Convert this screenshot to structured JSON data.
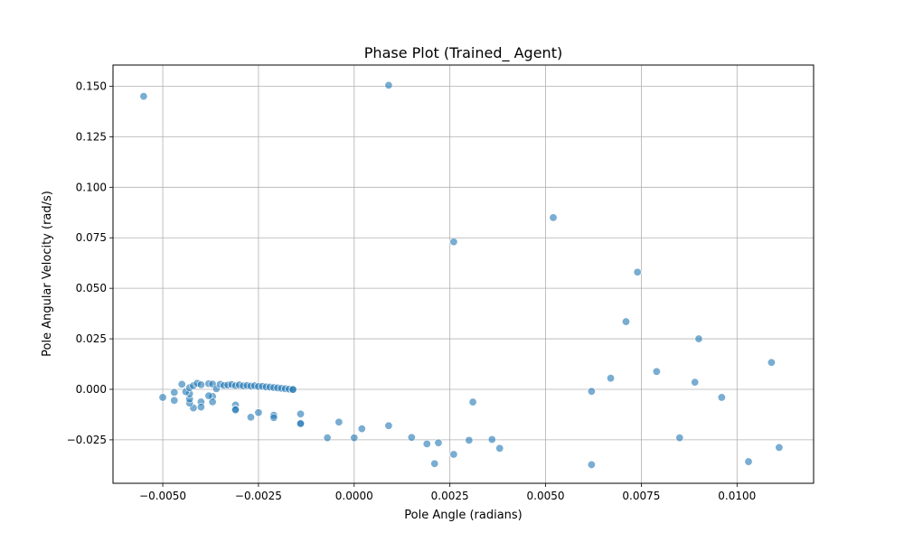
{
  "chart_data": {
    "type": "scatter",
    "title": "Phase Plot (Trained_ Agent)",
    "xlabel": "Pole Angle (radians)",
    "ylabel": "Pole Angular Velocity (rad/s)",
    "xlim": [
      -0.0063,
      0.012
    ],
    "ylim": [
      -0.0465,
      0.1605
    ],
    "grid": true,
    "x_ticks": [
      -0.005,
      -0.0025,
      0.0,
      0.0025,
      0.005,
      0.0075,
      0.01
    ],
    "x_tick_labels": [
      "−0.0050",
      "−0.0025",
      "0.0000",
      "0.0025",
      "0.0050",
      "0.0075",
      "0.0100"
    ],
    "y_ticks": [
      -0.025,
      0.0,
      0.025,
      0.05,
      0.075,
      0.1,
      0.125,
      0.15
    ],
    "y_tick_labels": [
      "−0.025",
      "0.000",
      "0.025",
      "0.050",
      "0.075",
      "0.100",
      "0.125",
      "0.150"
    ],
    "marker_color": "#1f77b4",
    "points": [
      {
        "x": -0.0055,
        "y": 0.145
      },
      {
        "x": 0.0009,
        "y": 0.1505
      },
      {
        "x": 0.0052,
        "y": 0.085
      },
      {
        "x": 0.0026,
        "y": 0.073
      },
      {
        "x": 0.0074,
        "y": 0.058
      },
      {
        "x": 0.0071,
        "y": 0.0335
      },
      {
        "x": 0.009,
        "y": 0.025
      },
      {
        "x": 0.0109,
        "y": 0.0133
      },
      {
        "x": 0.0079,
        "y": 0.0088
      },
      {
        "x": 0.0067,
        "y": 0.0055
      },
      {
        "x": 0.0089,
        "y": 0.0035
      },
      {
        "x": 0.0062,
        "y": -0.001
      },
      {
        "x": 0.0096,
        "y": -0.004
      },
      {
        "x": 0.0031,
        "y": -0.0063
      },
      {
        "x": 0.0085,
        "y": -0.024
      },
      {
        "x": 0.0111,
        "y": -0.0288
      },
      {
        "x": 0.0103,
        "y": -0.0358
      },
      {
        "x": 0.0062,
        "y": -0.0373
      },
      {
        "x": 0.0038,
        "y": -0.0292
      },
      {
        "x": 0.0036,
        "y": -0.0248
      },
      {
        "x": 0.003,
        "y": -0.0252
      },
      {
        "x": 0.0026,
        "y": -0.0322
      },
      {
        "x": 0.0022,
        "y": -0.0265
      },
      {
        "x": 0.0021,
        "y": -0.0368
      },
      {
        "x": 0.0019,
        "y": -0.027
      },
      {
        "x": 0.0015,
        "y": -0.0238
      },
      {
        "x": 0.0009,
        "y": -0.018
      },
      {
        "x": 0.0002,
        "y": -0.0195
      },
      {
        "x": 0.0,
        "y": -0.024
      },
      {
        "x": -0.0004,
        "y": -0.0162
      },
      {
        "x": -0.0007,
        "y": -0.024
      },
      {
        "x": -0.0014,
        "y": -0.0122
      },
      {
        "x": -0.0014,
        "y": -0.0168
      },
      {
        "x": -0.0014,
        "y": -0.017
      },
      {
        "x": -0.0021,
        "y": -0.0128
      },
      {
        "x": -0.0021,
        "y": -0.014
      },
      {
        "x": -0.0025,
        "y": -0.0115
      },
      {
        "x": -0.0027,
        "y": -0.0138
      },
      {
        "x": -0.0031,
        "y": -0.0078
      },
      {
        "x": -0.0031,
        "y": -0.0098
      },
      {
        "x": -0.0031,
        "y": -0.0102
      },
      {
        "x": -0.0037,
        "y": -0.0035
      },
      {
        "x": -0.0037,
        "y": -0.0062
      },
      {
        "x": -0.0038,
        "y": -0.0032
      },
      {
        "x": -0.004,
        "y": -0.0062
      },
      {
        "x": -0.004,
        "y": -0.0088
      },
      {
        "x": -0.0042,
        "y": -0.0092
      },
      {
        "x": -0.0043,
        "y": -0.0068
      },
      {
        "x": -0.0043,
        "y": -0.0048
      },
      {
        "x": -0.0043,
        "y": -0.0022
      },
      {
        "x": -0.0047,
        "y": -0.0055
      },
      {
        "x": -0.0047,
        "y": -0.0015
      },
      {
        "x": -0.005,
        "y": -0.004
      },
      {
        "x": -0.0045,
        "y": 0.0025
      },
      {
        "x": -0.0044,
        "y": -0.0012
      },
      {
        "x": -0.0043,
        "y": 0.0008
      },
      {
        "x": -0.0042,
        "y": 0.0018
      },
      {
        "x": -0.0041,
        "y": 0.003
      },
      {
        "x": -0.004,
        "y": 0.0023
      },
      {
        "x": -0.0038,
        "y": 0.0028
      },
      {
        "x": -0.0037,
        "y": 0.0026
      },
      {
        "x": -0.0036,
        "y": 0.0003
      },
      {
        "x": -0.0035,
        "y": 0.0025
      },
      {
        "x": -0.0034,
        "y": 0.0019
      },
      {
        "x": -0.0033,
        "y": 0.0021
      },
      {
        "x": -0.0032,
        "y": 0.0024
      },
      {
        "x": -0.0031,
        "y": 0.0018
      },
      {
        "x": -0.003,
        "y": 0.0022
      },
      {
        "x": -0.0029,
        "y": 0.0017
      },
      {
        "x": -0.0028,
        "y": 0.0019
      },
      {
        "x": -0.0027,
        "y": 0.0016
      },
      {
        "x": -0.0026,
        "y": 0.0018
      },
      {
        "x": -0.0025,
        "y": 0.0014
      },
      {
        "x": -0.0024,
        "y": 0.0015
      },
      {
        "x": -0.0023,
        "y": 0.0012
      },
      {
        "x": -0.0022,
        "y": 0.0011
      },
      {
        "x": -0.0021,
        "y": 0.0009
      },
      {
        "x": -0.002,
        "y": 0.0007
      },
      {
        "x": -0.0019,
        "y": 0.0005
      },
      {
        "x": -0.0018,
        "y": 0.0003
      },
      {
        "x": -0.0017,
        "y": 0.0001
      },
      {
        "x": -0.0016,
        "y": 0.0
      },
      {
        "x": -0.0016,
        "y": -0.0001
      }
    ]
  }
}
